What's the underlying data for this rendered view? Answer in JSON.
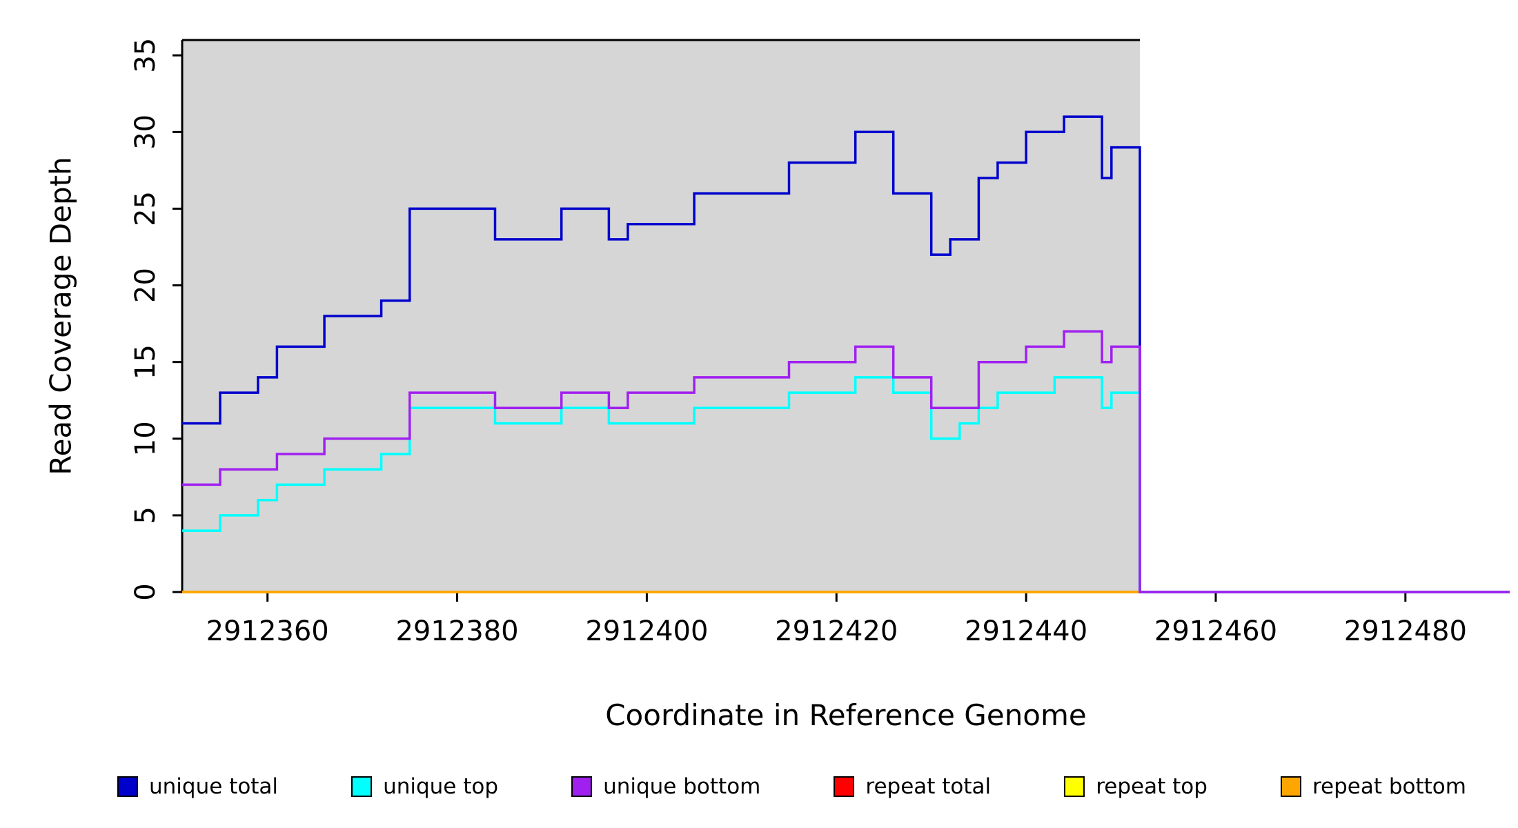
{
  "chart_data": {
    "type": "line",
    "subtype": "step",
    "title": "",
    "xlabel": "Coordinate in Reference Genome",
    "ylabel": "Read Coverage Depth",
    "xlim": [
      2912351,
      2912491
    ],
    "ylim": [
      0,
      36
    ],
    "x_ticks": [
      2912360,
      2912380,
      2912400,
      2912420,
      2912440,
      2912460,
      2912480
    ],
    "y_ticks": [
      0,
      5,
      10,
      15,
      20,
      25,
      30,
      35
    ],
    "grid": false,
    "shaded_region": {
      "x_start": 2912351,
      "x_end": 2912452,
      "color": "#d6d6d6"
    },
    "series": [
      {
        "name": "repeat total",
        "color": "#ff0000",
        "points": [
          [
            2912351,
            0
          ],
          [
            2912491,
            0
          ]
        ]
      },
      {
        "name": "repeat top",
        "color": "#ffff00",
        "points": [
          [
            2912351,
            0
          ],
          [
            2912491,
            0
          ]
        ]
      },
      {
        "name": "repeat bottom",
        "color": "#ffa500",
        "points": [
          [
            2912351,
            0
          ],
          [
            2912452,
            0
          ]
        ]
      },
      {
        "name": "unique total",
        "color": "#0000cd",
        "points": [
          [
            2912351,
            11
          ],
          [
            2912355,
            13
          ],
          [
            2912359,
            14
          ],
          [
            2912361,
            16
          ],
          [
            2912366,
            18
          ],
          [
            2912372,
            19
          ],
          [
            2912375,
            25
          ],
          [
            2912384,
            23
          ],
          [
            2912391,
            25
          ],
          [
            2912396,
            23
          ],
          [
            2912398,
            24
          ],
          [
            2912405,
            26
          ],
          [
            2912415,
            28
          ],
          [
            2912422,
            30
          ],
          [
            2912426,
            26
          ],
          [
            2912430,
            22
          ],
          [
            2912432,
            23
          ],
          [
            2912435,
            27
          ],
          [
            2912437,
            28
          ],
          [
            2912440,
            30
          ],
          [
            2912444,
            31
          ],
          [
            2912448,
            27
          ],
          [
            2912449,
            29
          ],
          [
            2912452,
            0
          ]
        ]
      },
      {
        "name": "unique top",
        "color": "#00ffff",
        "points": [
          [
            2912351,
            4
          ],
          [
            2912355,
            5
          ],
          [
            2912359,
            6
          ],
          [
            2912361,
            7
          ],
          [
            2912366,
            8
          ],
          [
            2912372,
            9
          ],
          [
            2912375,
            12
          ],
          [
            2912384,
            11
          ],
          [
            2912391,
            12
          ],
          [
            2912396,
            11
          ],
          [
            2912405,
            12
          ],
          [
            2912415,
            13
          ],
          [
            2912422,
            14
          ],
          [
            2912426,
            13
          ],
          [
            2912430,
            10
          ],
          [
            2912433,
            11
          ],
          [
            2912435,
            12
          ],
          [
            2912437,
            13
          ],
          [
            2912443,
            14
          ],
          [
            2912448,
            12
          ],
          [
            2912449,
            13
          ],
          [
            2912452,
            0
          ]
        ]
      },
      {
        "name": "unique bottom",
        "color": "#a020f0",
        "points": [
          [
            2912351,
            7
          ],
          [
            2912355,
            8
          ],
          [
            2912361,
            9
          ],
          [
            2912366,
            10
          ],
          [
            2912375,
            13
          ],
          [
            2912384,
            12
          ],
          [
            2912391,
            13
          ],
          [
            2912396,
            12
          ],
          [
            2912398,
            13
          ],
          [
            2912405,
            14
          ],
          [
            2912415,
            15
          ],
          [
            2912422,
            16
          ],
          [
            2912426,
            14
          ],
          [
            2912430,
            12
          ],
          [
            2912435,
            15
          ],
          [
            2912440,
            16
          ],
          [
            2912444,
            17
          ],
          [
            2912448,
            15
          ],
          [
            2912449,
            16
          ],
          [
            2912452,
            0
          ]
        ]
      }
    ],
    "legend": [
      {
        "label": "unique total",
        "color": "#0000cd"
      },
      {
        "label": "unique top",
        "color": "#00ffff"
      },
      {
        "label": "unique bottom",
        "color": "#a020f0"
      },
      {
        "label": "repeat total",
        "color": "#ff0000"
      },
      {
        "label": "repeat top",
        "color": "#ffff00"
      },
      {
        "label": "repeat bottom",
        "color": "#ffa500"
      }
    ],
    "legend_position": "bottom"
  }
}
